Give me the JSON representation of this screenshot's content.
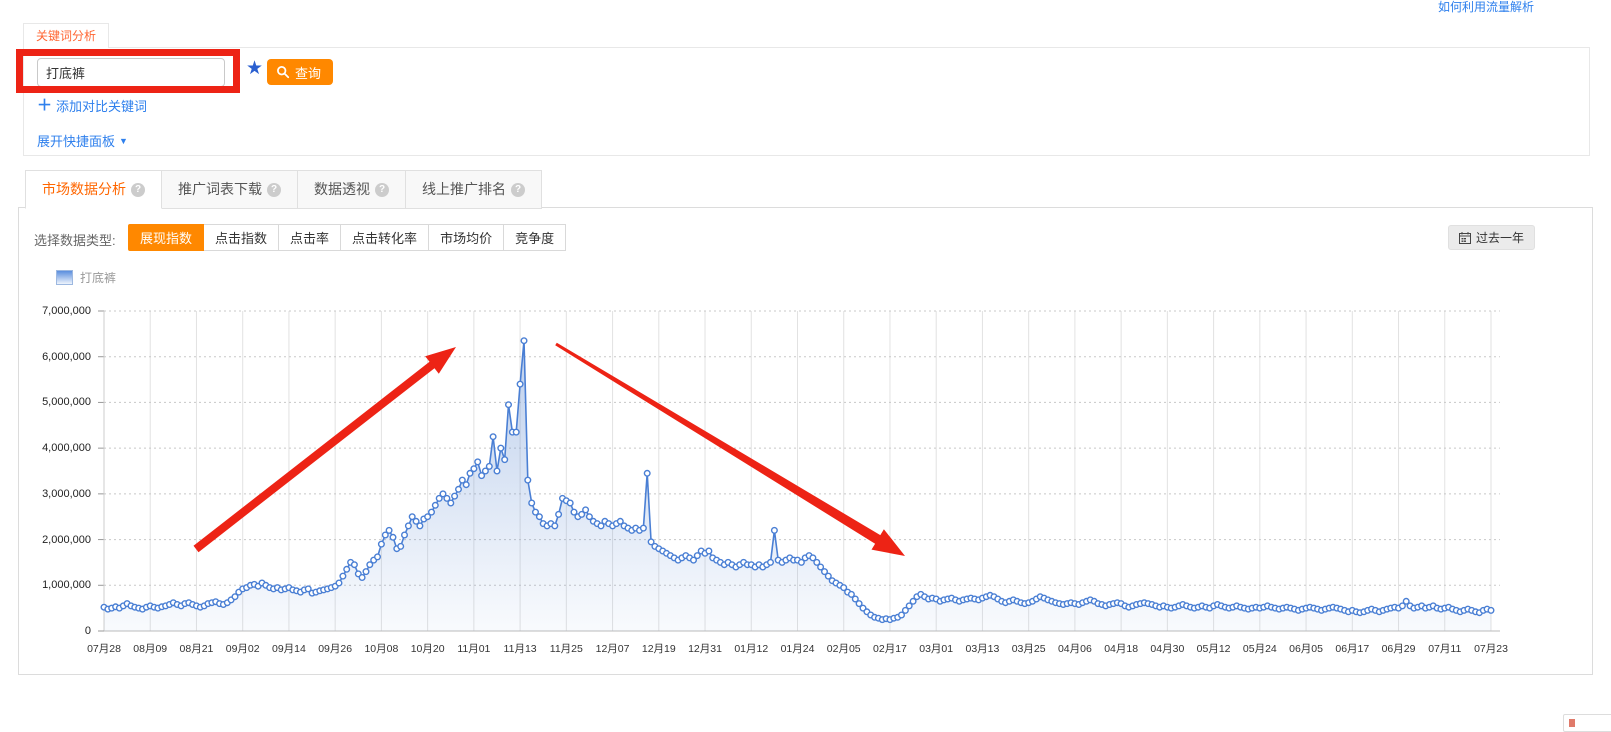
{
  "page": {
    "top_right_link": "如何利用流量解析"
  },
  "keyword_panel": {
    "tab_label": "关键词分析",
    "input_value": "打底裤",
    "query_button": "查询",
    "add_compare_link": "添加对比关键词",
    "expand_panel_link": "展开快捷面板"
  },
  "analysis_tabs": [
    {
      "label": "市场数据分析",
      "active": true
    },
    {
      "label": "推广词表下载",
      "active": false
    },
    {
      "label": "数据透视",
      "active": false
    },
    {
      "label": "线上推广排名",
      "active": false
    }
  ],
  "toolbar": {
    "data_type_label": "选择数据类型:",
    "data_types": [
      {
        "label": "展现指数",
        "active": true
      },
      {
        "label": "点击指数",
        "active": false
      },
      {
        "label": "点击率",
        "active": false
      },
      {
        "label": "点击转化率",
        "active": false
      },
      {
        "label": "市场均价",
        "active": false
      },
      {
        "label": "竞争度",
        "active": false
      }
    ],
    "date_range_button": "过去一年"
  },
  "legend": {
    "series_label": "打底裤"
  },
  "icons": {
    "query": "search-icon",
    "favorite": "star-icon",
    "add_compare": "plus-icon",
    "expand": "caret-down-icon",
    "tab_help": "question-icon",
    "date_range": "calendar-icon"
  },
  "colors": {
    "accent_orange": "#ff8800",
    "active_tab_orange": "#ff6600",
    "link_blue": "#2f80ed",
    "star_blue": "#2a5fd0",
    "line_blue": "#4a7fd4",
    "annotation_red": "#ed2315",
    "grid_gray": "#e2e2e2"
  },
  "chart_data": {
    "type": "area",
    "title": "",
    "xlabel": "",
    "ylabel": "",
    "ylim": [
      0,
      7000000
    ],
    "y_tick_step": 1000000,
    "grid": true,
    "legend_position": "top-left",
    "x_tick_labels": [
      "07月28",
      "08月09",
      "08月21",
      "09月02",
      "09月14",
      "09月26",
      "10月08",
      "10月20",
      "11月01",
      "11月13",
      "11月25",
      "12月07",
      "12月19",
      "12月31",
      "01月12",
      "01月24",
      "02月05",
      "02月17",
      "03月01",
      "03月13",
      "03月25",
      "04月06",
      "04月18",
      "04月30",
      "05月12",
      "05月24",
      "06月05",
      "06月17",
      "06月29",
      "07月11",
      "07月23"
    ],
    "days_per_tick": 12,
    "series": [
      {
        "name": "打底裤",
        "unit": "展现指数",
        "values_millions": [
          0.52,
          0.48,
          0.5,
          0.53,
          0.5,
          0.55,
          0.6,
          0.55,
          0.52,
          0.5,
          0.48,
          0.52,
          0.55,
          0.52,
          0.5,
          0.53,
          0.55,
          0.58,
          0.62,
          0.58,
          0.55,
          0.6,
          0.62,
          0.58,
          0.55,
          0.52,
          0.55,
          0.6,
          0.62,
          0.64,
          0.6,
          0.58,
          0.62,
          0.68,
          0.75,
          0.85,
          0.92,
          0.95,
          1.0,
          1.02,
          0.98,
          1.05,
          1.0,
          0.95,
          0.92,
          0.95,
          0.9,
          0.92,
          0.95,
          0.9,
          0.88,
          0.85,
          0.9,
          0.92,
          0.83,
          0.85,
          0.88,
          0.9,
          0.92,
          0.95,
          0.98,
          1.05,
          1.2,
          1.35,
          1.5,
          1.45,
          1.25,
          1.17,
          1.3,
          1.45,
          1.55,
          1.62,
          1.9,
          2.1,
          2.2,
          2.05,
          1.8,
          1.85,
          2.1,
          2.3,
          2.5,
          2.4,
          2.3,
          2.45,
          2.5,
          2.6,
          2.75,
          2.9,
          3.0,
          2.9,
          2.8,
          2.95,
          3.1,
          3.3,
          3.2,
          3.45,
          3.55,
          3.7,
          3.4,
          3.5,
          3.6,
          4.25,
          3.5,
          4.0,
          3.75,
          4.95,
          4.35,
          4.35,
          5.4,
          6.35,
          3.3,
          2.8,
          2.6,
          2.5,
          2.35,
          2.3,
          2.35,
          2.3,
          2.55,
          2.9,
          2.85,
          2.8,
          2.6,
          2.5,
          2.55,
          2.65,
          2.5,
          2.4,
          2.35,
          2.3,
          2.4,
          2.35,
          2.3,
          2.35,
          2.4,
          2.3,
          2.25,
          2.2,
          2.25,
          2.2,
          2.25,
          3.45,
          1.95,
          1.85,
          1.8,
          1.75,
          1.7,
          1.65,
          1.6,
          1.55,
          1.6,
          1.65,
          1.6,
          1.55,
          1.65,
          1.75,
          1.7,
          1.75,
          1.6,
          1.55,
          1.5,
          1.45,
          1.5,
          1.45,
          1.4,
          1.45,
          1.5,
          1.45,
          1.45,
          1.4,
          1.45,
          1.4,
          1.45,
          1.5,
          2.2,
          1.55,
          1.5,
          1.55,
          1.6,
          1.55,
          1.55,
          1.5,
          1.6,
          1.65,
          1.6,
          1.5,
          1.4,
          1.3,
          1.2,
          1.1,
          1.05,
          1.0,
          0.95,
          0.85,
          0.8,
          0.7,
          0.6,
          0.5,
          0.42,
          0.35,
          0.3,
          0.28,
          0.25,
          0.27,
          0.25,
          0.28,
          0.3,
          0.35,
          0.45,
          0.55,
          0.65,
          0.75,
          0.8,
          0.75,
          0.7,
          0.72,
          0.7,
          0.65,
          0.68,
          0.7,
          0.72,
          0.68,
          0.65,
          0.68,
          0.7,
          0.72,
          0.7,
          0.68,
          0.72,
          0.75,
          0.78,
          0.75,
          0.7,
          0.65,
          0.62,
          0.65,
          0.68,
          0.65,
          0.62,
          0.6,
          0.62,
          0.65,
          0.7,
          0.75,
          0.72,
          0.68,
          0.65,
          0.62,
          0.6,
          0.58,
          0.6,
          0.62,
          0.6,
          0.58,
          0.62,
          0.65,
          0.68,
          0.65,
          0.6,
          0.58,
          0.55,
          0.58,
          0.6,
          0.62,
          0.6,
          0.55,
          0.52,
          0.55,
          0.58,
          0.6,
          0.62,
          0.6,
          0.58,
          0.55,
          0.52,
          0.55,
          0.52,
          0.5,
          0.52,
          0.55,
          0.58,
          0.55,
          0.52,
          0.5,
          0.52,
          0.55,
          0.52,
          0.5,
          0.55,
          0.58,
          0.55,
          0.52,
          0.5,
          0.52,
          0.55,
          0.52,
          0.5,
          0.48,
          0.5,
          0.52,
          0.5,
          0.52,
          0.55,
          0.52,
          0.5,
          0.48,
          0.5,
          0.52,
          0.5,
          0.48,
          0.45,
          0.48,
          0.5,
          0.52,
          0.5,
          0.48,
          0.45,
          0.48,
          0.5,
          0.52,
          0.5,
          0.48,
          0.45,
          0.42,
          0.45,
          0.42,
          0.4,
          0.42,
          0.45,
          0.48,
          0.45,
          0.42,
          0.45,
          0.48,
          0.5,
          0.52,
          0.5,
          0.55,
          0.65,
          0.55,
          0.5,
          0.52,
          0.55,
          0.5,
          0.52,
          0.55,
          0.5,
          0.48,
          0.5,
          0.52,
          0.48,
          0.45,
          0.42,
          0.45,
          0.48,
          0.45,
          0.42,
          0.4,
          0.45,
          0.48,
          0.45
        ]
      }
    ],
    "annotations": [
      "red-arrow-up-trend",
      "red-arrow-down-trend",
      "red-box-on-keyword-input"
    ]
  }
}
